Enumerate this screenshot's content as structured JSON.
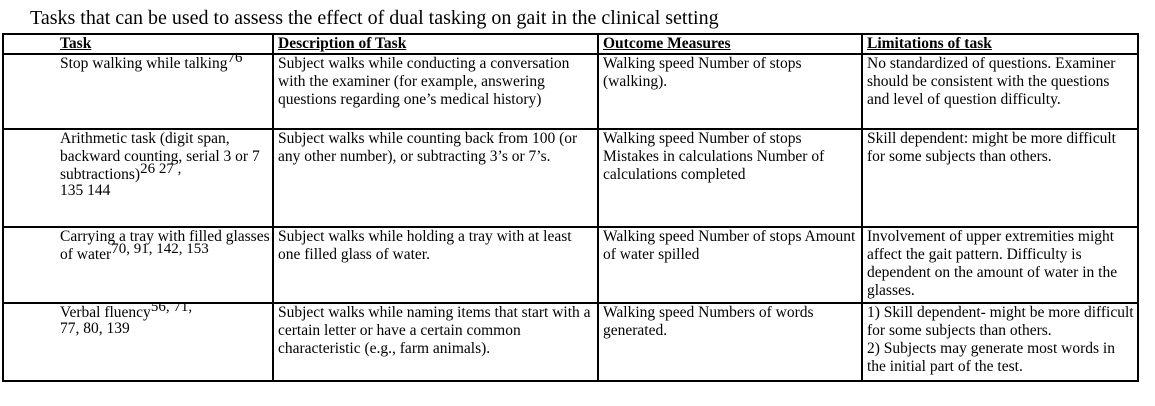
{
  "title": "Tasks that can be used to assess the effect of dual tasking on gait in the clinical setting",
  "table": {
    "headers": [
      "Task",
      "Description of Task",
      "Outcome Measures",
      "Limitations of task"
    ],
    "rows": [
      {
        "task": {
          "text": "Stop walking while talking",
          "sup": "76"
        },
        "description": "Subject walks while conducting a conversation with the examiner (for example, answering questions regarding one’s medical history)",
        "outcome": "Walking speed Number of stops (walking).",
        "limitations": [
          "No standardized of questions. Examiner should be consistent with the questions and level of question difficulty."
        ]
      },
      {
        "task": {
          "text": "Arithmetic task (digit span, backward counting, serial 3 or 7 subtractions)",
          "sup": "26 27 ,",
          "tail": "135 144"
        },
        "description": "Subject walks while counting back from 100 (or any other number), or subtracting 3’s or 7’s.",
        "outcome": "Walking speed Number of stops Mistakes in calculations Number of calculations completed",
        "limitations": [
          "Skill dependent: might be more difficult for some subjects than others."
        ]
      },
      {
        "task": {
          "text": "Carrying a tray with filled glasses of water",
          "sup": "70, 91, 142, 153"
        },
        "description": "Subject walks while holding a tray with at least one filled glass of water.",
        "outcome": "Walking speed Number of stops Amount of water spilled",
        "limitations": [
          "Involvement of upper extremities might affect the gait pattern. Difficulty is dependent on the amount of water in the glasses."
        ]
      },
      {
        "task": {
          "text": "Verbal fluency",
          "sup": "56, 71,",
          "tail": "77, 80, 139"
        },
        "description": "Subject walks while naming items that start with a certain letter or have a certain common characteristic (e.g., farm animals).",
        "outcome": "Walking speed Numbers of words generated.",
        "limitations": [
          "1) Skill dependent- might be more difficult for some subjects than others.",
          "2) Subjects may generate most words in the initial part of the test."
        ]
      }
    ]
  }
}
